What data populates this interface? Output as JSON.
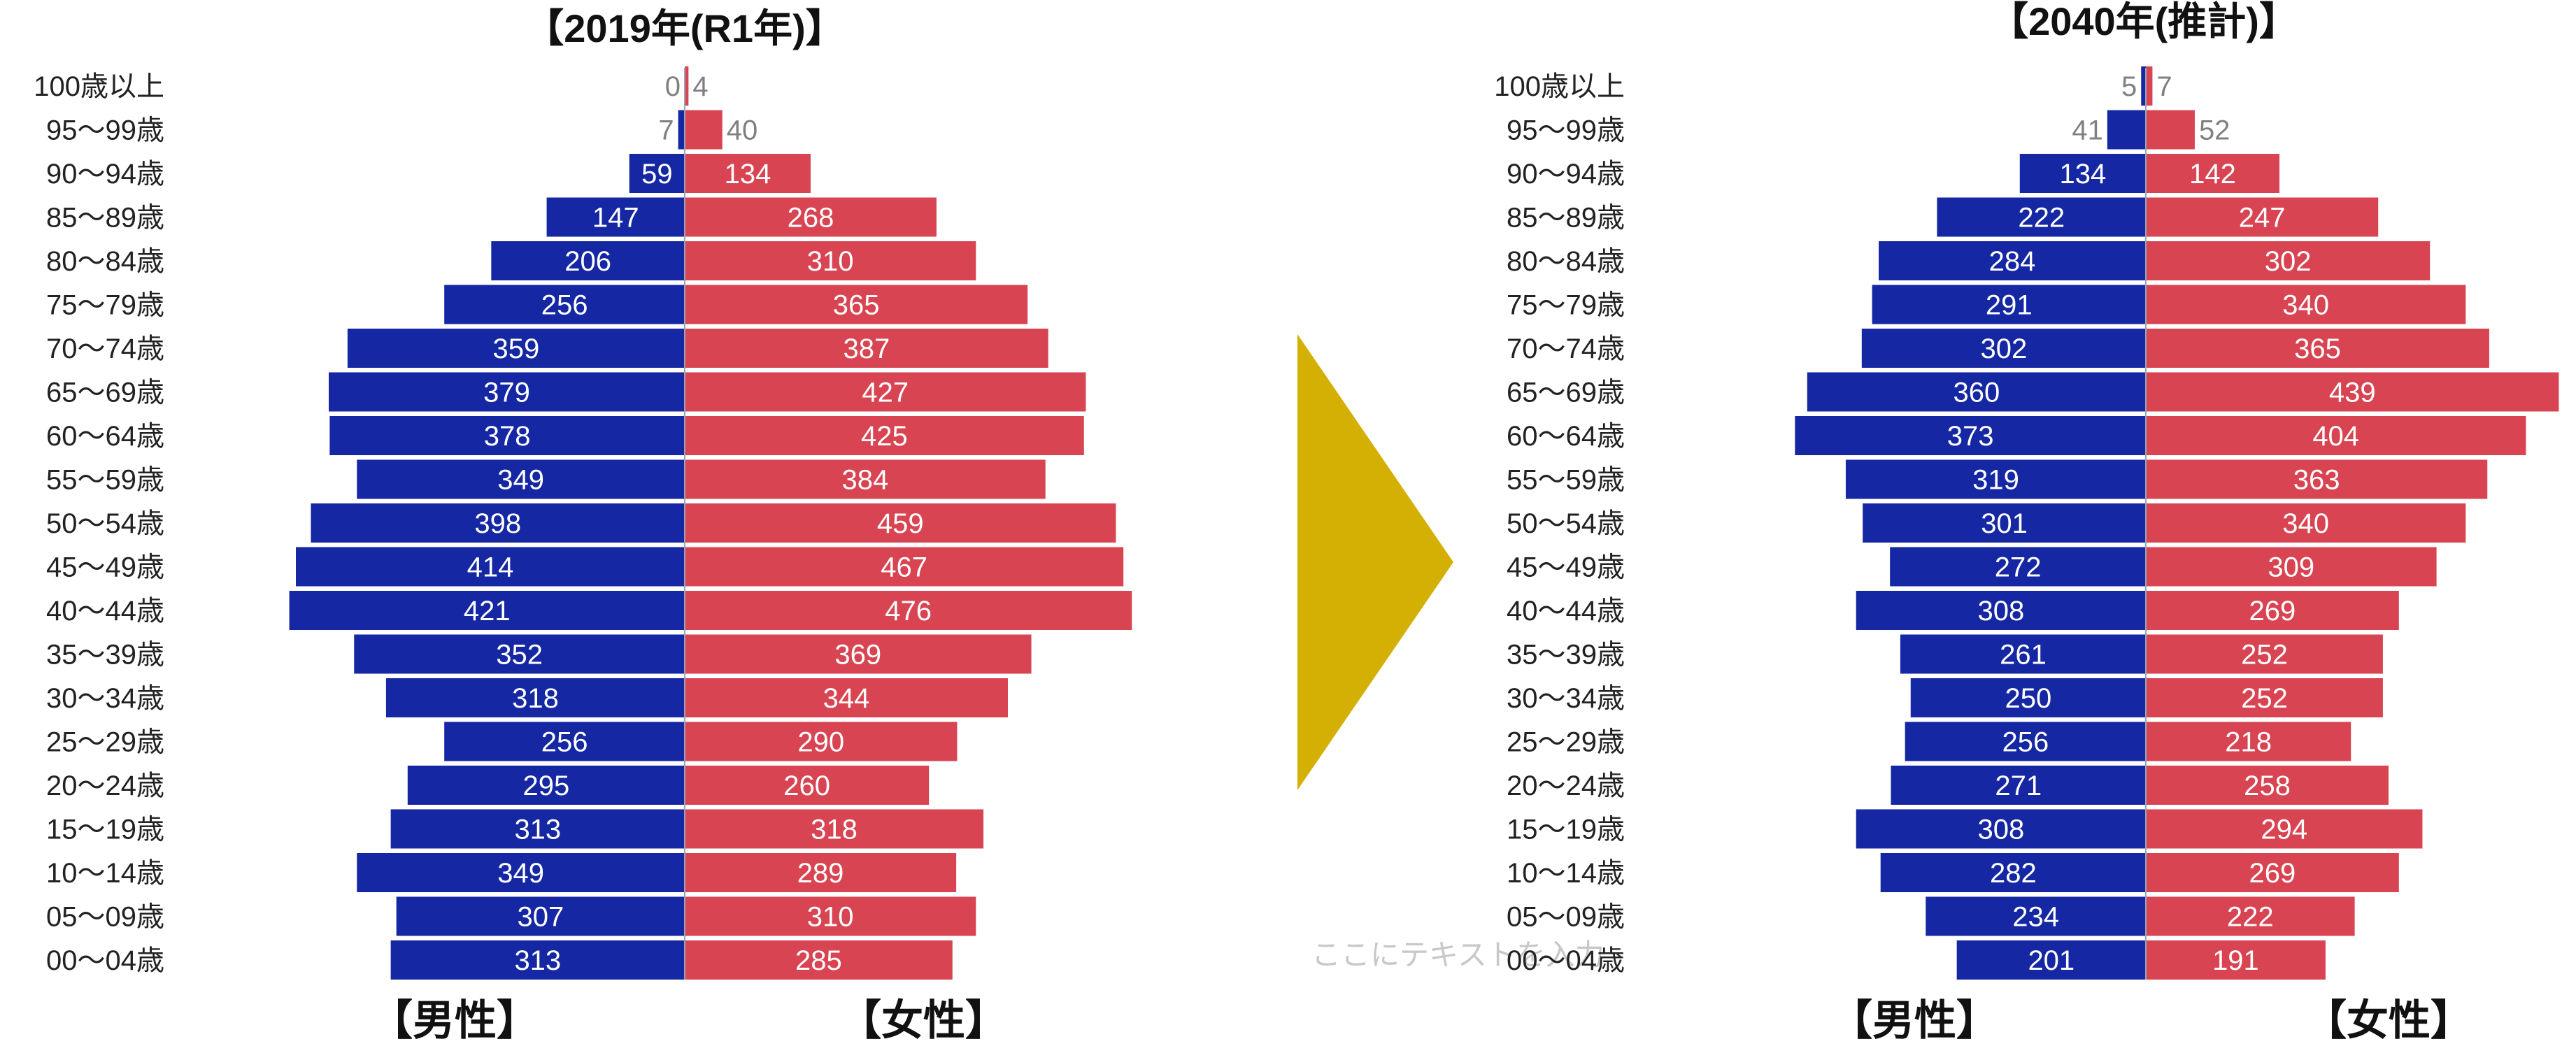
{
  "colors": {
    "male": "#1527a2",
    "female": "#d84452",
    "arrow": "#d4b004",
    "axis_line": "#9aa4b8",
    "value_outside": "#808080",
    "label_text": "#222222"
  },
  "arrow": {
    "icon": "right-triangle-arrow"
  },
  "watermark": "ここにテキストを入力",
  "age_groups": [
    "100歳以上",
    "95～99歳",
    "90～94歳",
    "85～89歳",
    "80～84歳",
    "75～79歳",
    "70～74歳",
    "65～69歳",
    "60～64歳",
    "55～59歳",
    "50～54歳",
    "45～49歳",
    "40～44歳",
    "35～39歳",
    "30～34歳",
    "25～29歳",
    "20～24歳",
    "15～19歳",
    "10～14歳",
    "05～09歳",
    "00～04歳"
  ],
  "chart_data": [
    {
      "type": "bar",
      "orientation": "horizontal",
      "layout": "population-pyramid",
      "title": "【2019年(R1年)】",
      "categories": [
        "100歳以上",
        "95～99歳",
        "90～94歳",
        "85～89歳",
        "80～84歳",
        "75～79歳",
        "70～74歳",
        "65～69歳",
        "60～64歳",
        "55～59歳",
        "50～54歳",
        "45～49歳",
        "40～44歳",
        "35～39歳",
        "30～34歳",
        "25～29歳",
        "20～24歳",
        "15～19歳",
        "10～14歳",
        "05～09歳",
        "00～04歳"
      ],
      "series": [
        {
          "name": "【男性】",
          "side": "left",
          "values": [
            0,
            7,
            59,
            147,
            206,
            256,
            359,
            379,
            378,
            349,
            398,
            414,
            421,
            352,
            318,
            256,
            295,
            313,
            349,
            307,
            313
          ]
        },
        {
          "name": "【女性】",
          "side": "right",
          "values": [
            4,
            40,
            134,
            268,
            310,
            365,
            387,
            427,
            425,
            384,
            459,
            467,
            476,
            369,
            344,
            290,
            260,
            318,
            289,
            310,
            285
          ]
        }
      ],
      "data_labels": true,
      "grid": false
    },
    {
      "type": "bar",
      "orientation": "horizontal",
      "layout": "population-pyramid",
      "title": "【2040年(推計)】",
      "categories": [
        "100歳以上",
        "95～99歳",
        "90～94歳",
        "85～89歳",
        "80～84歳",
        "75～79歳",
        "70～74歳",
        "65～69歳",
        "60～64歳",
        "55～59歳",
        "50～54歳",
        "45～49歳",
        "40～44歳",
        "35～39歳",
        "30～34歳",
        "25～29歳",
        "20～24歳",
        "15～19歳",
        "10～14歳",
        "05～09歳",
        "00～04歳"
      ],
      "series": [
        {
          "name": "【男性】",
          "side": "left",
          "values": [
            5,
            41,
            134,
            222,
            284,
            291,
            302,
            360,
            373,
            319,
            301,
            272,
            308,
            261,
            250,
            256,
            271,
            308,
            282,
            234,
            201
          ]
        },
        {
          "name": "【女性】",
          "side": "right",
          "values": [
            7,
            52,
            142,
            247,
            302,
            340,
            365,
            439,
            404,
            363,
            340,
            309,
            269,
            252,
            252,
            218,
            258,
            294,
            269,
            222,
            191
          ]
        }
      ],
      "data_labels": true,
      "grid": false
    }
  ]
}
